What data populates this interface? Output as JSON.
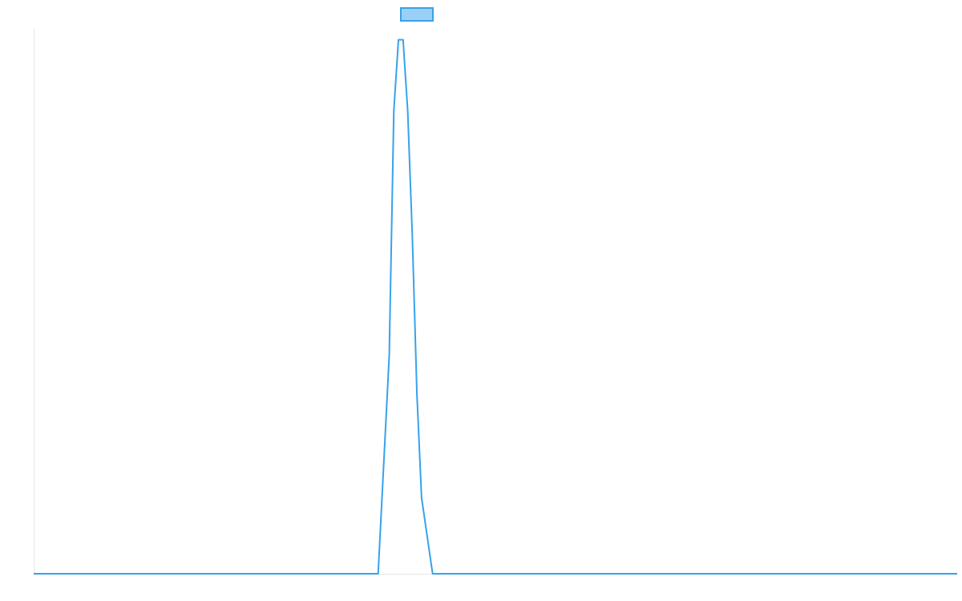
{
  "chart_data": {
    "type": "line",
    "title": "",
    "xlabel": "",
    "ylabel": "",
    "grid": false,
    "legend": {
      "position": "top-center"
    },
    "xlim": [
      0,
      100
    ],
    "ylim": [
      0,
      1
    ],
    "series": [
      {
        "color": "#36a2eb",
        "legend_fill": "#9ad0f5",
        "x": [
          0,
          10,
          20,
          30,
          37.3,
          38.5,
          39,
          39.5,
          40,
          40.5,
          41,
          41.5,
          42,
          43.2,
          50,
          60,
          70,
          80,
          90,
          100
        ],
        "y": [
          0,
          0,
          0,
          0,
          0,
          0.4,
          0.85,
          0.98,
          0.98,
          0.85,
          0.62,
          0.33,
          0.14,
          0,
          0,
          0,
          0,
          0,
          0,
          0
        ]
      }
    ]
  }
}
